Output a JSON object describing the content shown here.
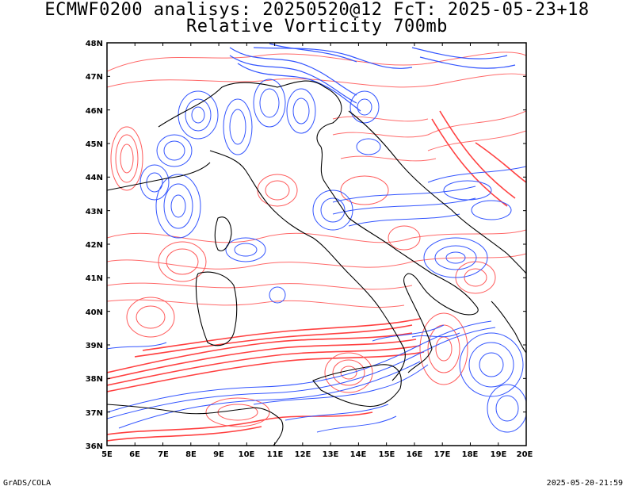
{
  "header": {
    "title_line1": "ECMWF0200 analisys: 20250520@12 FcT: 2025-05-23+18",
    "title_line2": "Relative Vorticity 700mb"
  },
  "map": {
    "lat_labels": [
      "48N",
      "47N",
      "46N",
      "45N",
      "44N",
      "43N",
      "42N",
      "41N",
      "40N",
      "39N",
      "38N",
      "37N",
      "36N"
    ],
    "lon_labels": [
      "5E",
      "6E",
      "7E",
      "8E",
      "9E",
      "10E",
      "11E",
      "12E",
      "13E",
      "14E",
      "15E",
      "16E",
      "17E",
      "18E",
      "19E",
      "20E"
    ],
    "region": "Italy / Central Mediterranean",
    "lat_range": [
      36,
      48
    ],
    "lon_range": [
      5,
      20
    ],
    "colors": {
      "positive_vorticity": "#ff4040",
      "negative_vorticity": "#3355ff",
      "coastline": "#000000"
    }
  },
  "footer": {
    "credit": "GrADS/COLA",
    "timestamp": "2025-05-20-21:59"
  }
}
